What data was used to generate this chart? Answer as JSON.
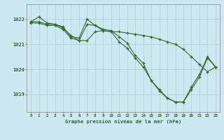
{
  "background_color": "#cce8f0",
  "grid_color": "#aacccc",
  "line_color": "#336633",
  "ylabel_ticks": [
    1019,
    1020,
    1021,
    1022
  ],
  "xlabel_ticks": [
    0,
    1,
    2,
    3,
    4,
    5,
    6,
    7,
    8,
    9,
    10,
    11,
    12,
    13,
    14,
    15,
    16,
    17,
    18,
    19,
    20,
    21,
    22,
    23
  ],
  "xlabel": "Graphe pression niveau de la mer (hPa)",
  "ylim": [
    1018.3,
    1022.6
  ],
  "xlim": [
    -0.5,
    23.5
  ],
  "series": [
    {
      "x": [
        0,
        1,
        2,
        3,
        4,
        5,
        6,
        7,
        8,
        9,
        10,
        11,
        12,
        13,
        14,
        15,
        16,
        17,
        18,
        19,
        20,
        21,
        22,
        23
      ],
      "y": [
        1021.9,
        1022.1,
        1021.85,
        1021.8,
        1021.7,
        1021.3,
        1021.25,
        1022.0,
        1021.75,
        1021.6,
        1021.55,
        1021.3,
        1021.05,
        1020.55,
        1020.25,
        1019.55,
        1019.2,
        1018.85,
        1018.7,
        1018.7,
        1019.2,
        1019.7,
        1020.45,
        1020.1
      ]
    },
    {
      "x": [
        0,
        1,
        2,
        3,
        4,
        5,
        6,
        7,
        8,
        9,
        10,
        11,
        12,
        13,
        14,
        15,
        16,
        17,
        18,
        19,
        20,
        21,
        22,
        23
      ],
      "y": [
        1021.9,
        1021.9,
        1021.8,
        1021.8,
        1021.65,
        1021.35,
        1021.15,
        1021.8,
        1021.75,
        1021.55,
        1021.5,
        1021.1,
        1020.85,
        1020.45,
        1020.1,
        1019.55,
        1019.15,
        1018.85,
        1018.7,
        1018.7,
        1019.3,
        1019.8,
        1020.5,
        1020.1
      ]
    },
    {
      "x": [
        0,
        1,
        2,
        3,
        4,
        5,
        6,
        7,
        8,
        9,
        10,
        11,
        12,
        13,
        14,
        15,
        16,
        17,
        18,
        19,
        20,
        21,
        22,
        23
      ],
      "y": [
        1021.85,
        1021.85,
        1021.75,
        1021.75,
        1021.6,
        1021.25,
        1021.15,
        1021.15,
        1021.5,
        1021.55,
        1021.5,
        1021.5,
        1021.45,
        1021.4,
        1021.35,
        1021.3,
        1021.2,
        1021.1,
        1021.0,
        1020.8,
        1020.5,
        1020.2,
        1019.9,
        1020.1
      ]
    }
  ]
}
